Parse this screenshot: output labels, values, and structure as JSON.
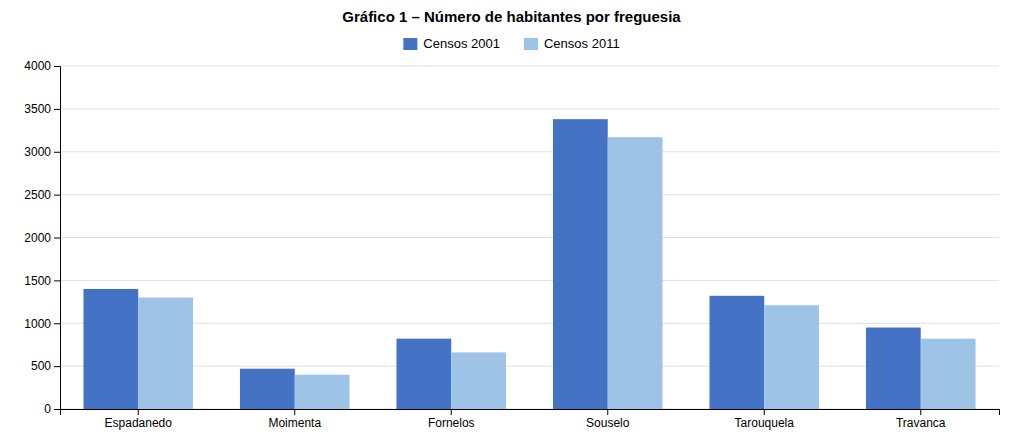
{
  "chart_data": {
    "type": "bar",
    "title": "Gráfico 1 – Número de habitantes por freguesia",
    "categories": [
      "Espadanedo",
      "Moimenta",
      "Fornelos",
      "Souselo",
      "Tarouquela",
      "Travanca"
    ],
    "series": [
      {
        "name": "Censos 2001",
        "color": "#4472C4",
        "values": [
          1400,
          470,
          820,
          3380,
          1320,
          950
        ]
      },
      {
        "name": "Censos 2011",
        "color": "#9DC3E6",
        "values": [
          1300,
          400,
          660,
          3170,
          1210,
          820
        ]
      }
    ],
    "ylim": [
      0,
      4000
    ],
    "yticks": [
      0,
      500,
      1000,
      1500,
      2000,
      2500,
      3000,
      3500,
      4000
    ],
    "grid": true,
    "legend": "top"
  }
}
